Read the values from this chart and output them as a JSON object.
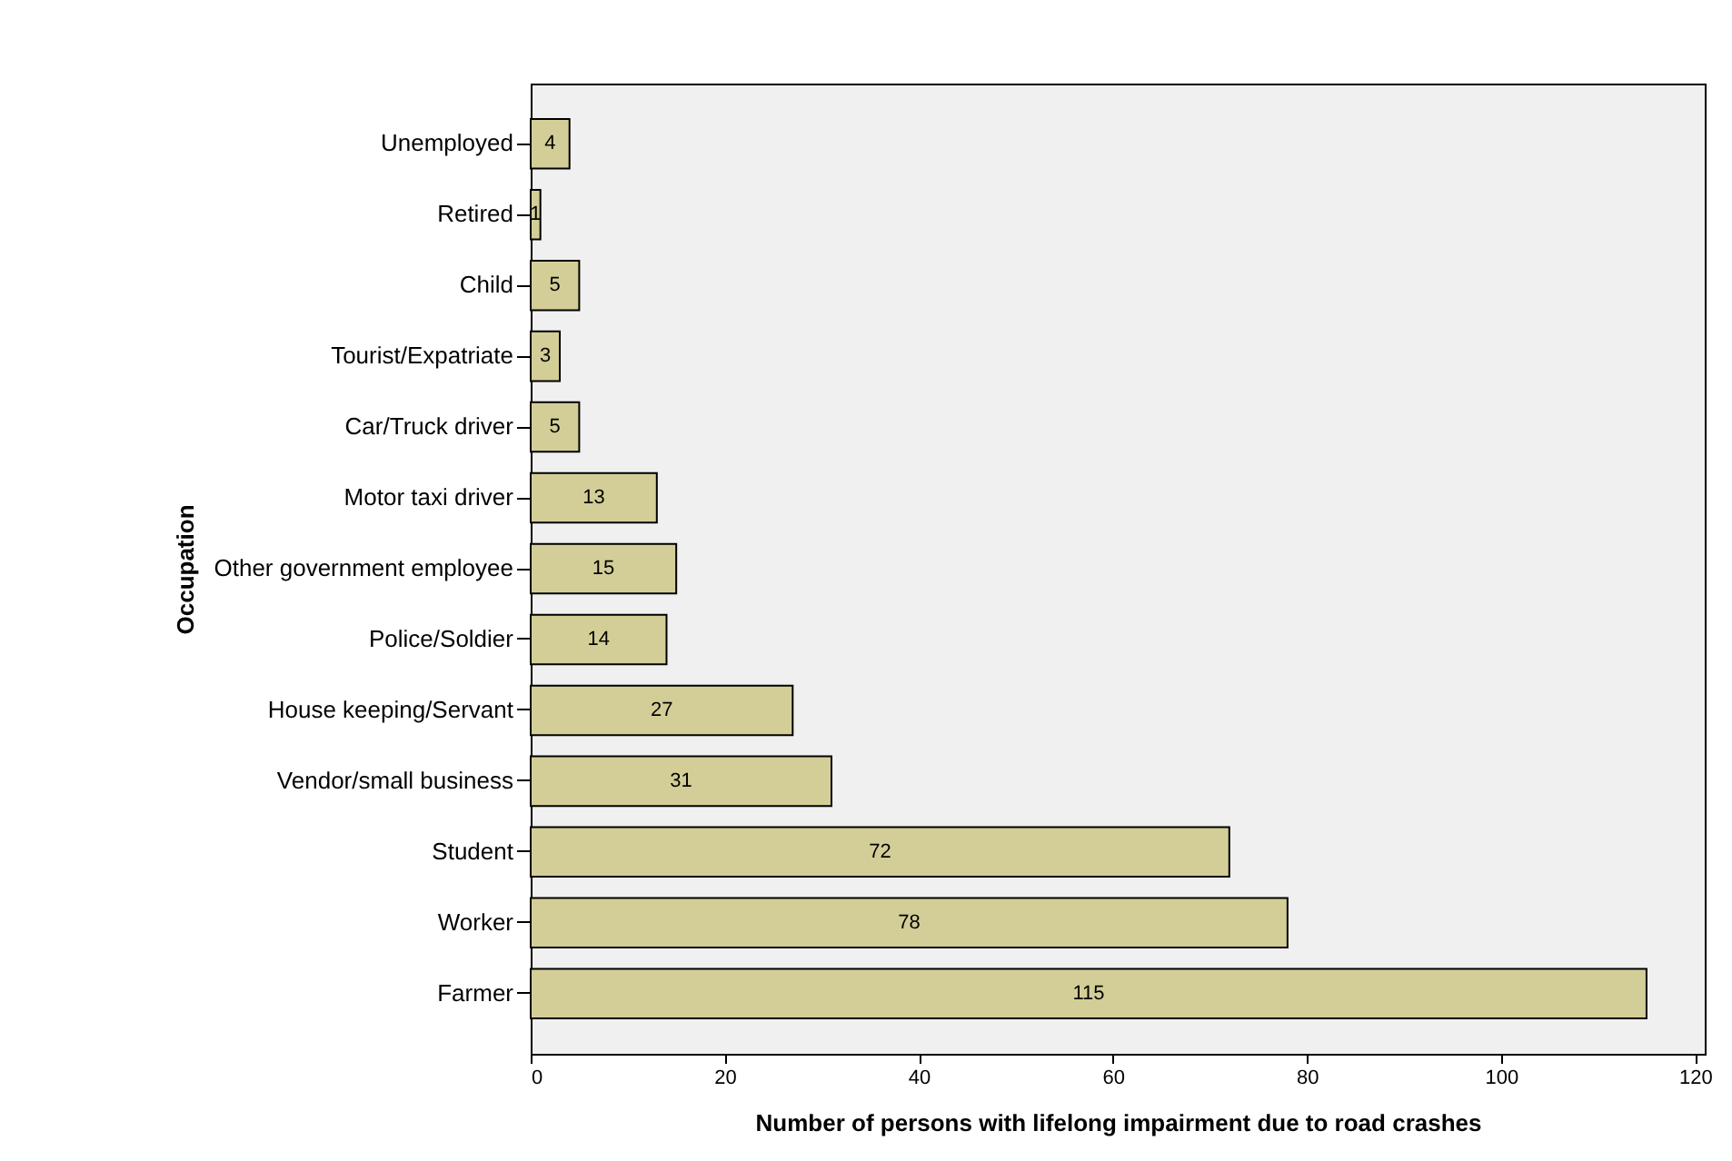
{
  "chart_data": {
    "type": "bar",
    "orientation": "horizontal",
    "xlabel": "Number of persons with lifelong impairment due to road crashes",
    "ylabel": "Occupation",
    "categories": [
      "Unemployed",
      "Retired",
      "Child",
      "Tourist/Expatriate",
      "Car/Truck driver",
      "Motor taxi driver",
      "Other government employee",
      "Police/Soldier",
      "House keeping/Servant",
      "Vendor/small business",
      "Student",
      "Worker",
      "Farmer"
    ],
    "values": [
      4,
      1,
      5,
      3,
      5,
      13,
      15,
      14,
      27,
      31,
      72,
      78,
      115
    ],
    "color": "#d3ce97",
    "xlim": [
      0,
      121
    ],
    "xticks": [
      0,
      20,
      40,
      60,
      80,
      100,
      120
    ],
    "data_labels": true
  }
}
